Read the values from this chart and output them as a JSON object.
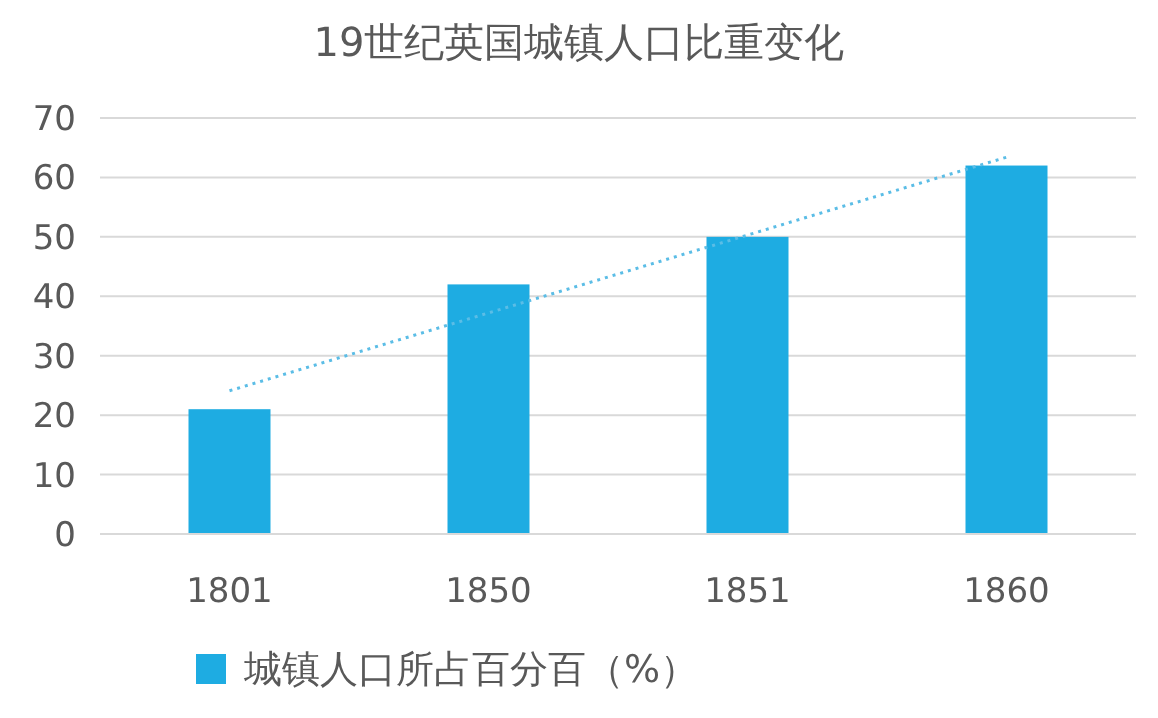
{
  "chart_data": {
    "type": "bar",
    "title": "19世纪英国城镇人口比重变化",
    "categories": [
      "1801",
      "1850",
      "1851",
      "1860"
    ],
    "series": [
      {
        "name": "城镇人口所占百分百（%）",
        "color": "#1eace2",
        "values": [
          21,
          42,
          50,
          62
        ]
      },
      {
        "type": "line",
        "color": "#5bbde6",
        "line_style": "dotted",
        "marker": "none",
        "values": [
          24.1,
          37.2,
          50.3,
          63.4
        ]
      }
    ],
    "ylim": [
      0,
      70
    ],
    "yticks": [
      0,
      10,
      20,
      30,
      40,
      50,
      60,
      70
    ],
    "grid": "y",
    "legend": "bottom"
  }
}
